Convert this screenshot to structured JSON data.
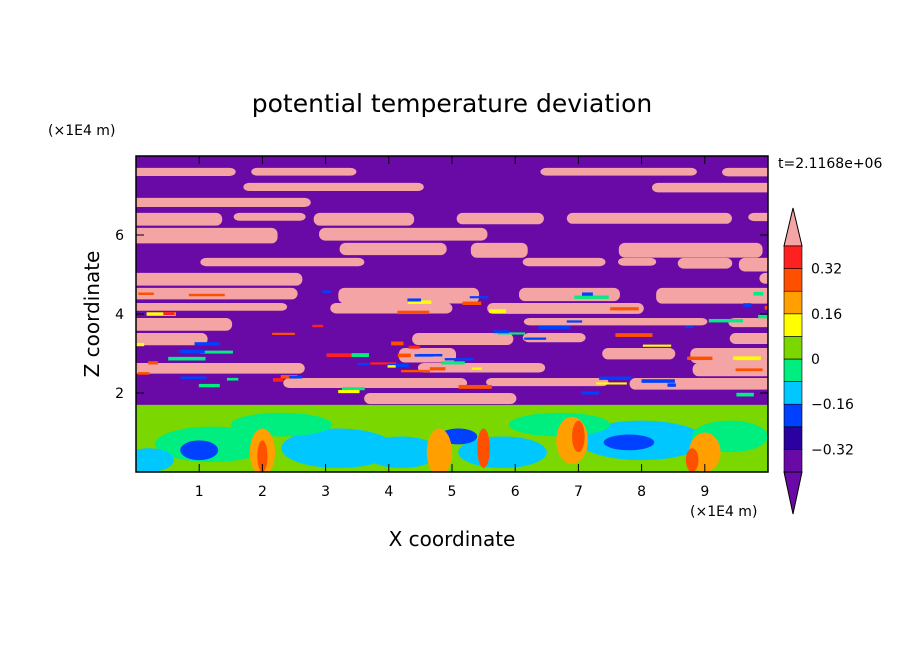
{
  "chart_data": {
    "type": "heatmap",
    "title": "potential temperature deviation",
    "xlabel": "X coordinate",
    "ylabel": "Z coordinate",
    "x_unit": "(×1E4 m)",
    "y_unit": "(×1E4 m)",
    "time_label": "t=2.1168e+06",
    "xlim": [
      0,
      10
    ],
    "ylim": [
      0,
      8
    ],
    "x_ticks": [
      1,
      2,
      3,
      4,
      5,
      6,
      7,
      8,
      9
    ],
    "y_ticks": [
      2,
      4,
      6
    ],
    "colorbar": {
      "levels": [
        -0.4,
        -0.32,
        -0.24,
        -0.16,
        -0.08,
        0,
        0.08,
        0.16,
        0.24,
        0.32,
        0.4
      ],
      "labeled": [
        -0.32,
        -0.16,
        0,
        0.16,
        0.32
      ],
      "tick_labels": [
        "0.32",
        "0.16",
        "0",
        "−0.16",
        "−0.32"
      ],
      "colors": [
        "#6a0aa6",
        "#2a00a0",
        "#0040ff",
        "#00c8ff",
        "#00ee80",
        "#7ad800",
        "#ffff00",
        "#ffa000",
        "#ff5000",
        "#ff2020",
        "#f4a4a4"
      ],
      "extend": "both"
    }
  }
}
